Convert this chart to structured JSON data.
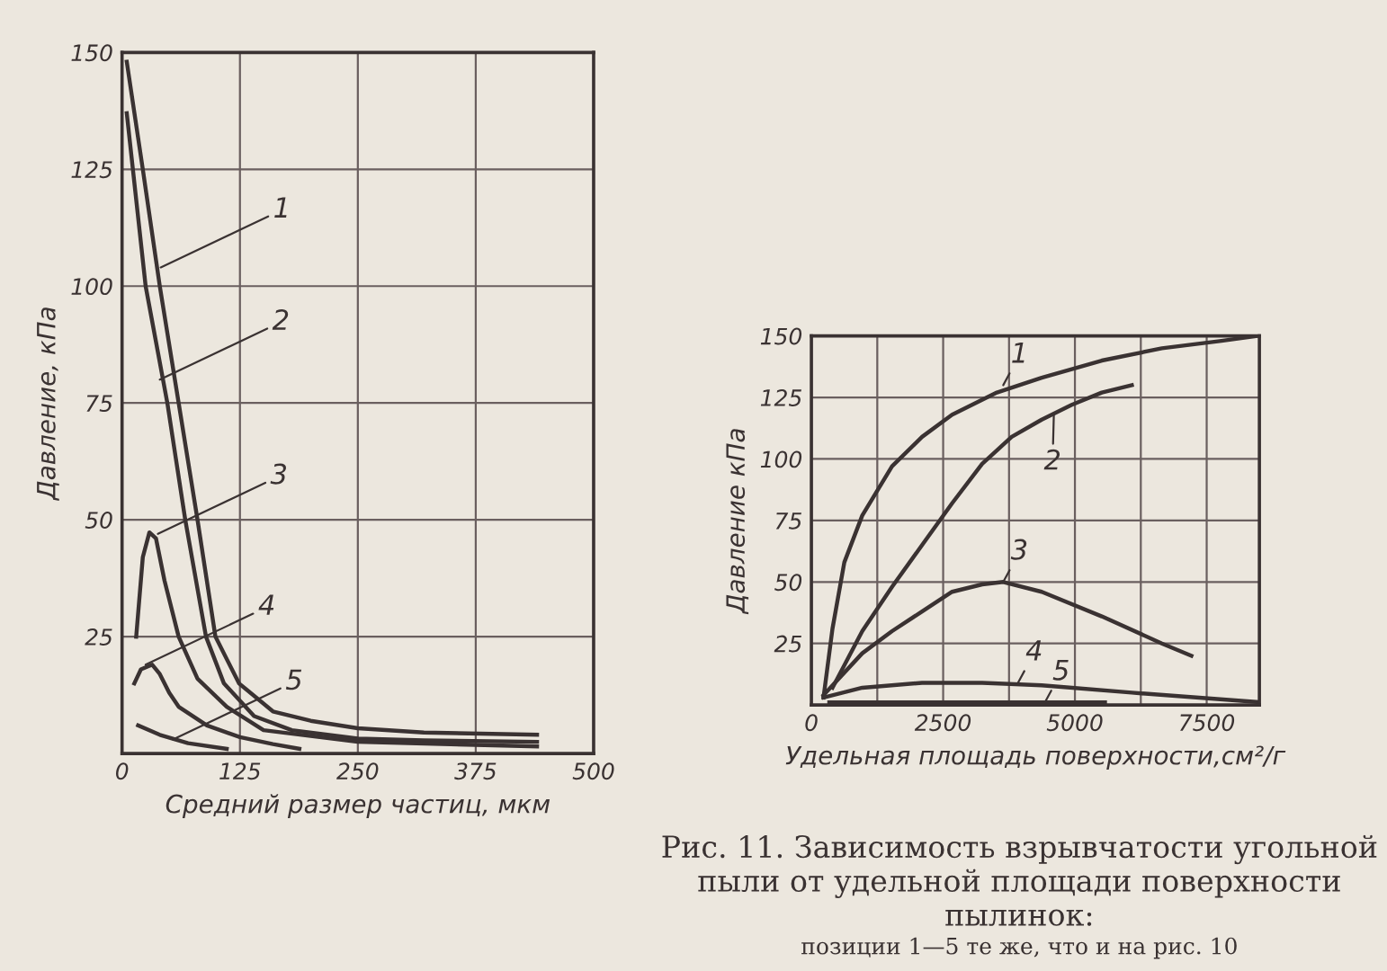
{
  "chart_data": [
    {
      "type": "line",
      "xlabel": "Средний размер частиц, мкм",
      "ylabel": "Давление, кПа",
      "xlim": [
        0,
        500
      ],
      "ylim": [
        0,
        150
      ],
      "xticks": [
        0,
        125,
        250,
        375,
        500
      ],
      "yticks": [
        25,
        50,
        75,
        100,
        125,
        150
      ],
      "grid": true,
      "series": [
        {
          "color": "#3a3232",
          "x": [
            5,
            22,
            40,
            60,
            80,
            99,
            124,
            160,
            200,
            250,
            320,
            440
          ],
          "values": [
            148,
            125,
            100,
            75,
            50,
            25,
            15,
            9,
            7,
            5.4,
            4.5,
            4
          ]
        },
        {
          "color": "#3a3232",
          "x": [
            5,
            25,
            48,
            67,
            89,
            108,
            140,
            180,
            250,
            320,
            440
          ],
          "values": [
            137,
            100,
            75,
            50,
            25,
            15,
            8,
            5,
            3.2,
            2.8,
            2.5
          ]
        },
        {
          "color": "#3a3232",
          "x": [
            15,
            22,
            29,
            36,
            45,
            60,
            80,
            111,
            150,
            250,
            440
          ],
          "values": [
            25,
            42,
            47.3,
            46,
            37,
            25,
            16,
            10,
            5,
            2.5,
            1.5
          ]
        },
        {
          "color": "#3a3232",
          "x": [
            13,
            20,
            32,
            40,
            50,
            60,
            90,
            125,
            160,
            188
          ],
          "values": [
            15,
            18,
            19,
            17,
            13,
            10,
            6,
            3.5,
            2,
            1
          ]
        },
        {
          "color": "#3a3232",
          "x": [
            17,
            40,
            70,
            111
          ],
          "values": [
            6,
            4,
            2.2,
            1
          ]
        }
      ],
      "annotations": [
        {
          "text": "1",
          "x": 41,
          "y": 104
        },
        {
          "text": "2",
          "x": 40,
          "y": 80
        },
        {
          "text": "3",
          "x": 38,
          "y": 47
        },
        {
          "text": "4",
          "x": 25,
          "y": 19
        },
        {
          "text": "5",
          "x": 54,
          "y": 3
        }
      ]
    },
    {
      "type": "line",
      "xlabel": "Удельная площадь поверхности,см²/г",
      "ylabel": "Давление кПа",
      "xlim": [
        0,
        8500
      ],
      "ylim": [
        0,
        150
      ],
      "xticks": [
        0,
        {
          "value": 1250,
          "label": null
        },
        2500,
        {
          "value": 3750,
          "label": null
        },
        5000,
        {
          "value": 6250,
          "label": null
        },
        7500
      ],
      "yticks": [
        25,
        50,
        75,
        100,
        125,
        150
      ],
      "grid": true,
      "series": [
        {
          "color": "#3a3232",
          "x": [
            230,
            400,
            625,
            965,
            1530,
            2100,
            2670,
            3520,
            4370,
            5510,
            6650,
            7780,
            8460
          ],
          "values": [
            3,
            31,
            58,
            77,
            97,
            109,
            118,
            127,
            133,
            140,
            145,
            148,
            150
          ]
        },
        {
          "color": "#3a3232",
          "x": [
            400,
            965,
            1530,
            2100,
            2670,
            3240,
            3800,
            4370,
            4940,
            5510,
            6080
          ],
          "values": [
            7,
            30,
            48,
            65,
            82,
            98,
            109,
            116,
            122,
            127,
            130
          ]
        },
        {
          "color": "#3a3232",
          "x": [
            230,
            965,
            1530,
            2100,
            2670,
            3240,
            3640,
            4370,
            5510,
            6650,
            7210
          ],
          "values": [
            4,
            21,
            30,
            38,
            46,
            49,
            50,
            46,
            36,
            25,
            20
          ]
        },
        {
          "color": "#3a3232",
          "x": [
            230,
            965,
            2100,
            3240,
            4370,
            6080,
            8460
          ],
          "values": [
            3,
            7,
            9,
            9,
            8,
            5,
            1.2
          ]
        },
        {
          "color": "#3a3232",
          "x": [
            340,
            5570
          ],
          "values": [
            1,
            1
          ]
        }
      ],
      "annotations": [
        {
          "text": "1",
          "x": 3640,
          "y": 130
        },
        {
          "text": "2",
          "x": 4600,
          "y": 118
        },
        {
          "text": "3",
          "x": 3640,
          "y": 50
        },
        {
          "text": "4",
          "x": 3920,
          "y": 9
        },
        {
          "text": "5",
          "x": 4430,
          "y": 1
        },
        "Рис. 11. Зависимость взрывчатости угольной пыли от удельной площади поверхности пылинок:",
        "позиции 1—5 те же, что и на рис. 10"
      ]
    }
  ]
}
